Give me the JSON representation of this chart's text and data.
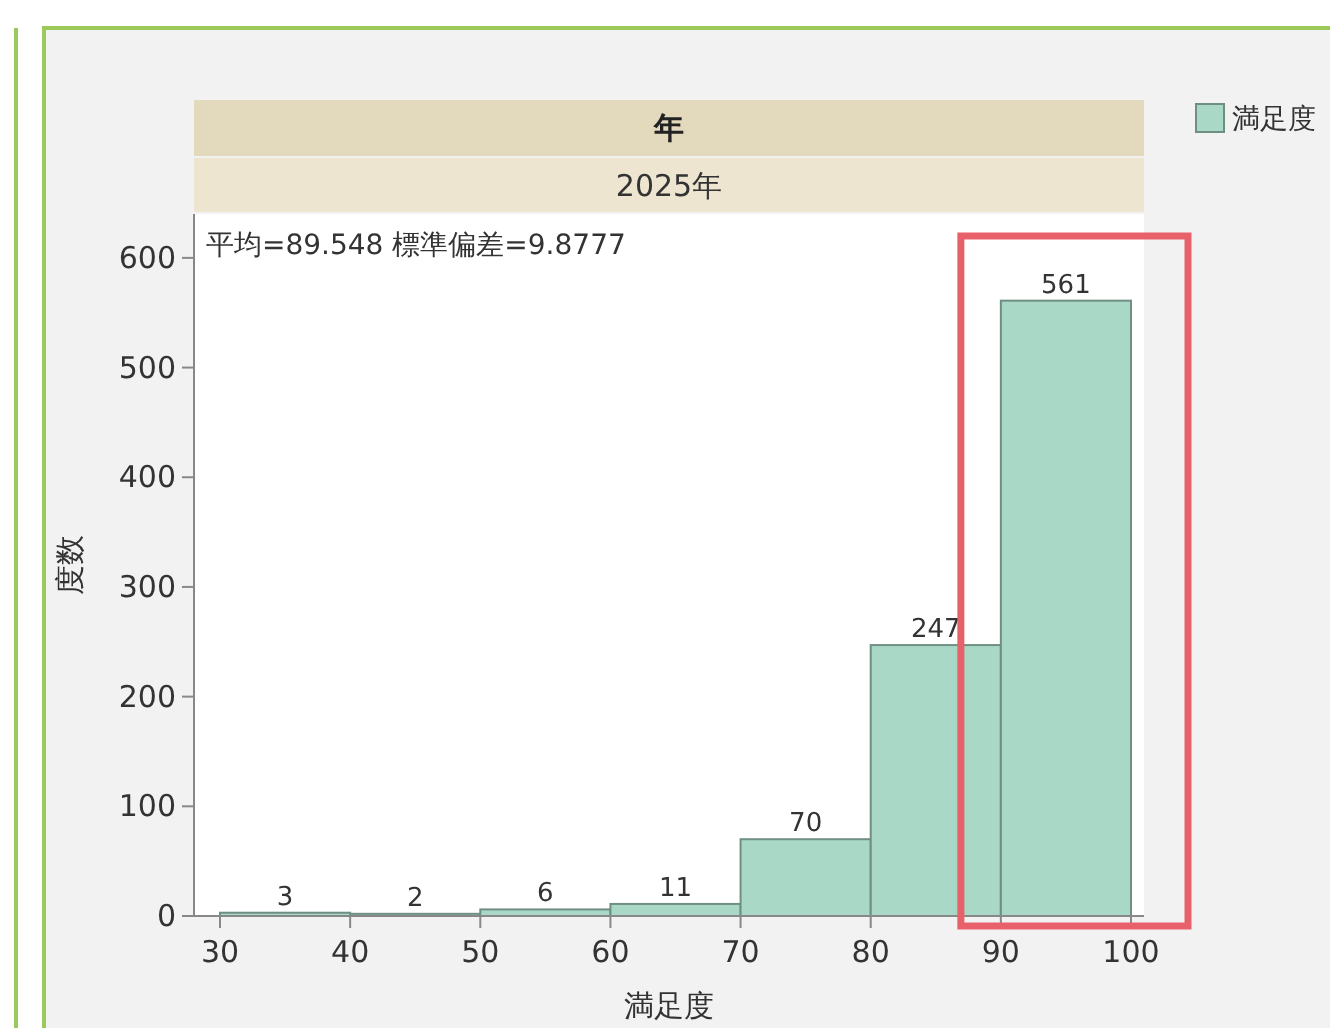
{
  "chart_data": {
    "type": "histogram",
    "title": "年",
    "subtitle": "2025年",
    "xlabel": "満足度",
    "ylabel": "度数",
    "annotations": [
      "平均=89.548 標準偏差=9.8777"
    ],
    "bins": [
      30,
      40,
      50,
      60,
      70,
      80,
      90,
      100
    ],
    "series": [
      {
        "name": "満足度",
        "color": "#a9d9c6",
        "values": [
          3,
          2,
          6,
          11,
          70,
          247,
          561
        ]
      }
    ],
    "xlim": [
      28,
      101
    ],
    "ylim": [
      0,
      640
    ],
    "xticks": [
      30,
      40,
      50,
      60,
      70,
      80,
      90,
      100
    ],
    "yticks": [
      0,
      100,
      200,
      300,
      400,
      500,
      600
    ],
    "data_labels": true,
    "legend": "top right"
  }
}
